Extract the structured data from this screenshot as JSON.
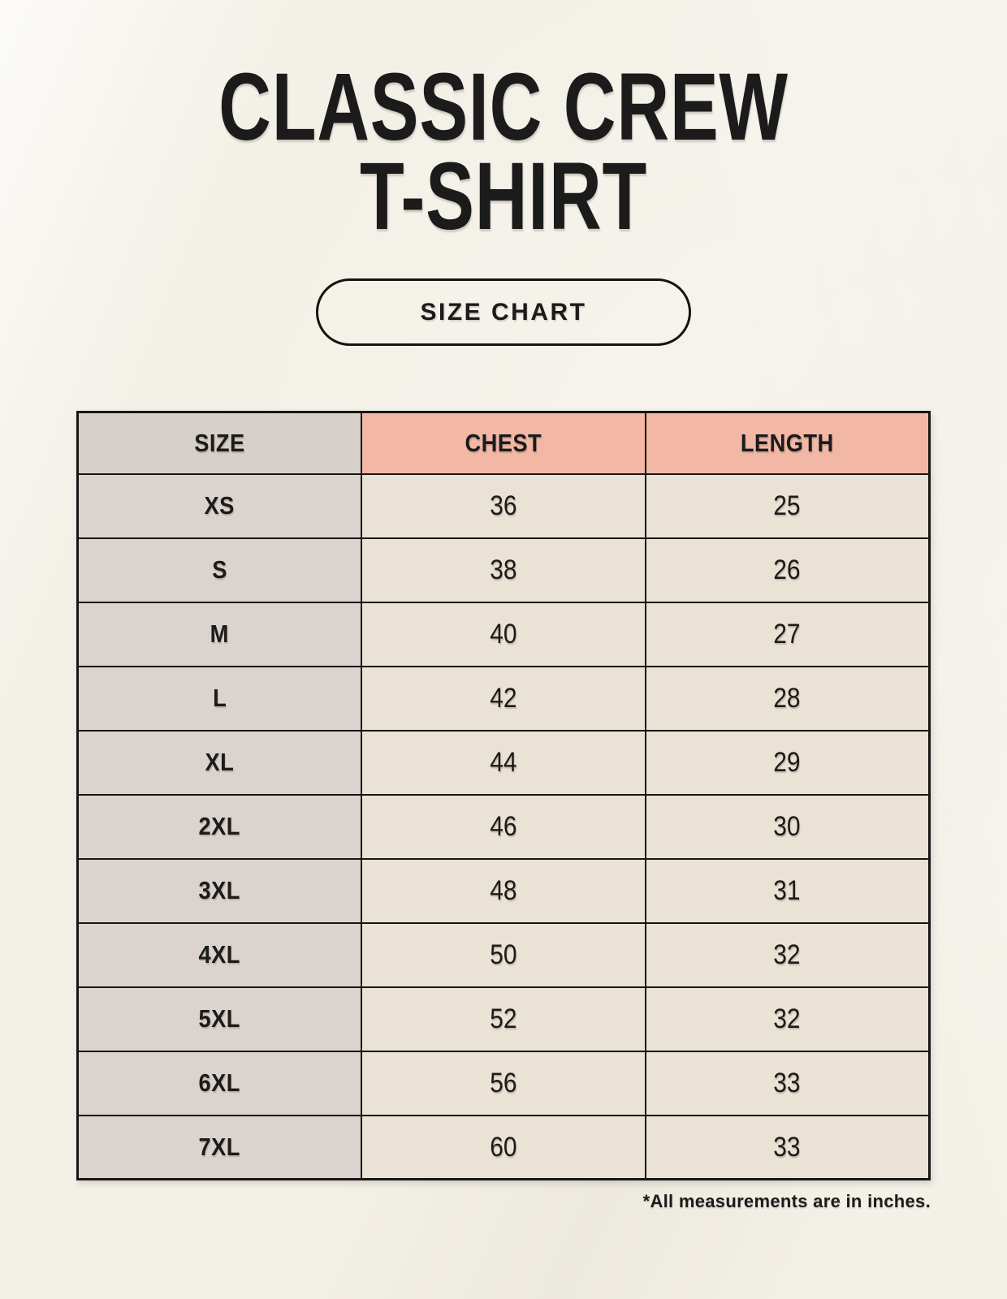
{
  "header": {
    "title_line1": "CLASSIC CREW",
    "title_line2": "T-SHIRT",
    "badge_label": "SIZE CHART"
  },
  "footnote": "*All measurements are in inches.",
  "colors": {
    "page_bg": "#f3f0e7",
    "accent_header_bg": "#f2b7a5",
    "header_size_bg": "#d7d0ca",
    "size_col_bg": "#dbd4ce",
    "data_cell_bg": "#e9e2d5",
    "table_border": "#161616",
    "text_color": "#1b1b1b"
  },
  "chart_data": {
    "type": "table",
    "title": "CLASSIC CREW T-SHIRT",
    "units": "inches",
    "columns": [
      "SIZE",
      "CHEST",
      "LENGTH"
    ],
    "rows": [
      {
        "size": "XS",
        "chest": 36,
        "length": 25
      },
      {
        "size": "S",
        "chest": 38,
        "length": 26
      },
      {
        "size": "M",
        "chest": 40,
        "length": 27
      },
      {
        "size": "L",
        "chest": 42,
        "length": 28
      },
      {
        "size": "XL",
        "chest": 44,
        "length": 29
      },
      {
        "size": "2XL",
        "chest": 46,
        "length": 30
      },
      {
        "size": "3XL",
        "chest": 48,
        "length": 31
      },
      {
        "size": "4XL",
        "chest": 50,
        "length": 32
      },
      {
        "size": "5XL",
        "chest": 52,
        "length": 32
      },
      {
        "size": "6XL",
        "chest": 56,
        "length": 33
      },
      {
        "size": "7XL",
        "chest": 60,
        "length": 33
      }
    ]
  }
}
